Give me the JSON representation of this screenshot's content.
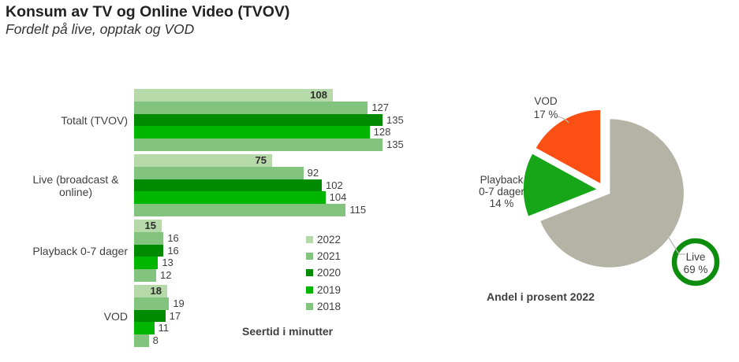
{
  "header": {
    "title": "Konsum av TV og Online Video (TVOV)",
    "subtitle": "Fordelt på live, opptak og VOD"
  },
  "chart_data": [
    {
      "type": "bar",
      "orientation": "horizontal",
      "categories": [
        "Totalt (TVOV)",
        "Live (broadcast & online)",
        "Playback 0-7 dager",
        "VOD"
      ],
      "series": [
        {
          "name": "2022",
          "color": "#b5d9a8",
          "values": [
            108,
            75,
            15,
            18
          ],
          "labels_inside_bold": true
        },
        {
          "name": "2021",
          "color": "#82c47d",
          "values": [
            127,
            92,
            16,
            19
          ]
        },
        {
          "name": "2020",
          "color": "#008a00",
          "values": [
            135,
            102,
            16,
            17
          ]
        },
        {
          "name": "2019",
          "color": "#00b600",
          "values": [
            128,
            104,
            13,
            11
          ]
        },
        {
          "name": "2018",
          "color": "#82c47d",
          "values": [
            135,
            115,
            12,
            8
          ]
        }
      ],
      "xlabel": "Seertid i minutter",
      "xlim": [
        0,
        135
      ],
      "grid": false,
      "legend": [
        "2022",
        "2021",
        "2020",
        "2019",
        "2018"
      ],
      "legend_position": "center-right"
    },
    {
      "type": "pie",
      "title": "Andel i prosent 2022",
      "start_angle_deg": 0,
      "direction": "clockwise",
      "exploded": true,
      "slices": [
        {
          "label": "Live",
          "value_pct": 69,
          "color": "#b4b3a6",
          "label_lines": [
            "Live",
            "69 %"
          ],
          "callout": "green-ring-circle"
        },
        {
          "label": "Playback 0-7 dager",
          "value_pct": 14,
          "color": "#17a617",
          "label_lines": [
            "Playback",
            "0-7 dager",
            "14 %"
          ]
        },
        {
          "label": "VOD",
          "value_pct": 17,
          "color": "#fb4f14",
          "label_lines": [
            "VOD",
            "17 %"
          ]
        }
      ],
      "callout_ring_color": "#0e8c0e",
      "leader_line_color": "#b8b8af"
    }
  ]
}
